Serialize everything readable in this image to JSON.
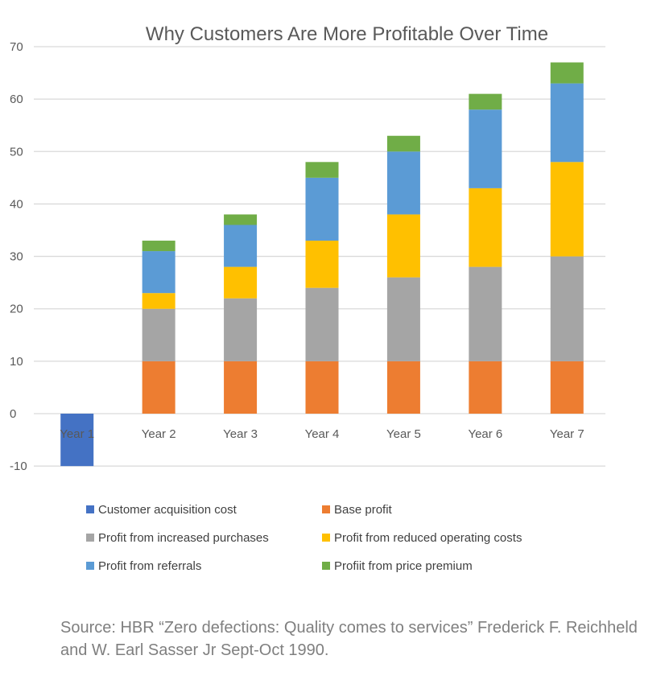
{
  "chart_data": {
    "type": "bar",
    "stacked": true,
    "title": "Why Customers Are More Profitable Over Time",
    "xlabel": "",
    "ylabel": "",
    "ylim": [
      -10,
      70
    ],
    "yticks": [
      -10,
      0,
      10,
      20,
      30,
      40,
      50,
      60,
      70
    ],
    "grid": true,
    "legend_position": "bottom",
    "categories": [
      "Year 1",
      "Year 2",
      "Year 3",
      "Year 4",
      "Year 5",
      "Year 6",
      "Year 7"
    ],
    "series": [
      {
        "name": "Customer acquisition cost",
        "color": "#4472C4",
        "values": [
          -10,
          0,
          0,
          0,
          0,
          0,
          0
        ]
      },
      {
        "name": "Base profit",
        "color": "#ED7D31",
        "values": [
          0,
          10,
          10,
          10,
          10,
          10,
          10
        ]
      },
      {
        "name": "Profit from increased purchases",
        "color": "#A5A5A5",
        "values": [
          0,
          10,
          12,
          14,
          16,
          18,
          20
        ]
      },
      {
        "name": "Profit from reduced operating costs",
        "color": "#FFC000",
        "values": [
          0,
          3,
          6,
          9,
          12,
          15,
          18
        ]
      },
      {
        "name": "Profit from referrals",
        "color": "#5B9BD5",
        "values": [
          0,
          8,
          8,
          12,
          12,
          15,
          15
        ]
      },
      {
        "name": "Profiit from price premium",
        "color": "#70AD47",
        "values": [
          0,
          2,
          2,
          3,
          3,
          3,
          4
        ]
      }
    ]
  },
  "source": "Source: HBR “Zero defections: Quality comes to services” Frederick F. Reichheld and W. Earl Sasser Jr Sept-Oct 1990."
}
